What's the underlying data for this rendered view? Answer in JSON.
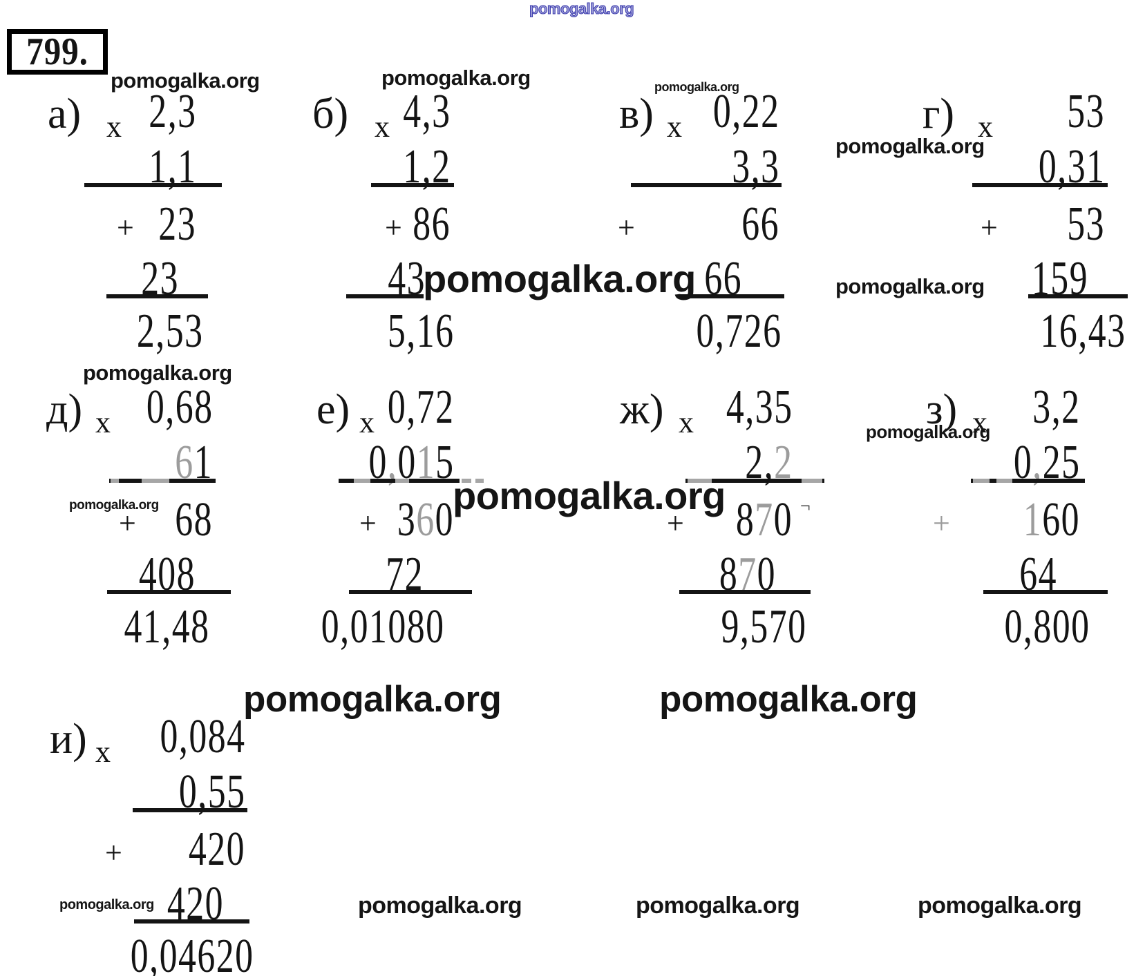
{
  "page": {
    "background": "#ffffff",
    "ink_color": "#141414",
    "gray_digit_color": "#9c9c9c",
    "watermark_blue": "#3b3bad"
  },
  "problem_number": "799.",
  "watermark": {
    "text": "pomogalka.org"
  },
  "symbols": {
    "multiply": "x",
    "plus": "+",
    "stray_mark": "¬"
  },
  "problems": [
    {
      "label": "а)",
      "multiplicand": "2,3",
      "multiplier": "1,1",
      "partial_product_1": "23",
      "partial_product_2": "23",
      "result": "2,53"
    },
    {
      "label": "б)",
      "multiplicand": "4,3",
      "multiplier": "1,2",
      "partial_product_1": "86",
      "partial_product_2": "43",
      "result": "5,16"
    },
    {
      "label": "в)",
      "multiplicand": "0,22",
      "multiplier": "3,3",
      "partial_product_1": "66",
      "partial_product_2": "66",
      "result": "0,726"
    },
    {
      "label": "г)",
      "multiplicand": "53",
      "multiplier": "0,31",
      "partial_product_1": "53",
      "partial_product_2": "159",
      "result": "16,43"
    },
    {
      "label": "д)",
      "multiplicand": "0,68",
      "multiplier": "61",
      "partial_product_1": "68",
      "partial_product_2": "408",
      "result": "41,48"
    },
    {
      "label": "е)",
      "multiplicand": "0,72",
      "multiplier": "0,015",
      "partial_product_1": "360",
      "partial_product_2": "72",
      "result": "0,01080"
    },
    {
      "label": "ж)",
      "multiplicand": "4,35",
      "multiplier": "2,2",
      "partial_product_1": "870",
      "partial_product_2": "870",
      "result": "9,570"
    },
    {
      "label": "з)",
      "multiplicand": "3,2",
      "multiplier": "0,25",
      "partial_product_1": "160",
      "partial_product_2": "64",
      "result": "0,800"
    },
    {
      "label": "и)",
      "multiplicand": "0,084",
      "multiplier": "0,55",
      "partial_product_1": "420",
      "partial_product_2": "420",
      "result": "0,04620"
    }
  ]
}
